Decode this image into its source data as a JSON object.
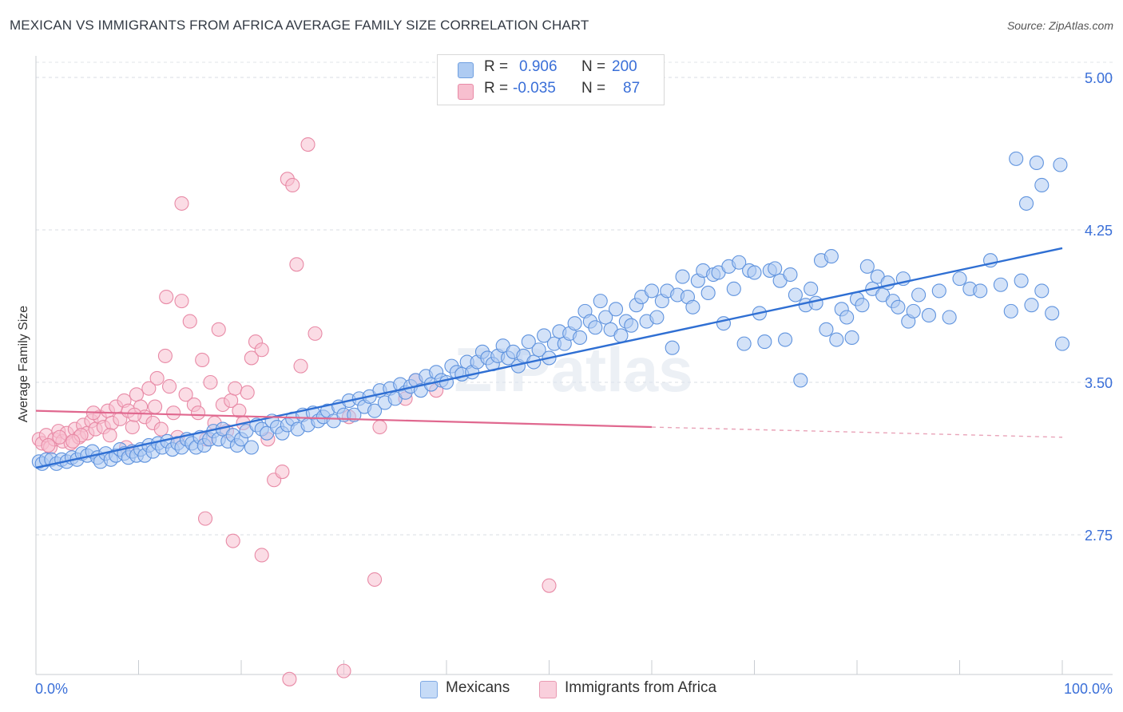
{
  "title": "MEXICAN VS IMMIGRANTS FROM AFRICA AVERAGE FAMILY SIZE CORRELATION CHART",
  "source": "Source: ZipAtlas.com",
  "watermark": "ZIPatlas",
  "legend": {
    "rows": [
      {
        "r_label": "R =",
        "r_value": "0.906",
        "n_label": "N =",
        "n_value": "200",
        "color": "#aecbf2",
        "stroke": "#6f9fe0"
      },
      {
        "r_label": "R =",
        "r_value": "-0.035",
        "n_label": "N =",
        "n_value": "87",
        "color": "#f7bfcf",
        "stroke": "#e88aa6"
      }
    ],
    "bottom": [
      {
        "label": "Mexicans",
        "color": "#c6dbf7",
        "stroke": "#7fa9e4"
      },
      {
        "label": "Immigrants from Africa",
        "color": "#f9cfdc",
        "stroke": "#e99ab2"
      }
    ]
  },
  "chart_data": {
    "type": "scatter",
    "title": "MEXICAN VS IMMIGRANTS FROM AFRICA AVERAGE FAMILY SIZE CORRELATION CHART",
    "xlabel": "",
    "ylabel": "Average Family Size",
    "x_tick_labels": [
      "0.0%",
      "100.0%"
    ],
    "y_tick_labels": [
      "2.75",
      "3.50",
      "4.25",
      "5.00"
    ],
    "xlim": [
      0,
      100
    ],
    "ylim": [
      2.0,
      5.07
    ],
    "grid": "horizontal dashed",
    "legend_position": "top-center",
    "colors": {
      "mexicans": "#3a74d4",
      "africa": "#e0688f"
    },
    "series": [
      {
        "name": "Mexicans",
        "color": "#3a74d4",
        "trend": {
          "x": [
            0,
            100
          ],
          "y": [
            3.08,
            4.16
          ],
          "style": "solid"
        },
        "points": [
          [
            0.3,
            3.11
          ],
          [
            0.6,
            3.1
          ],
          [
            1,
            3.12
          ],
          [
            1.5,
            3.12
          ],
          [
            2,
            3.1
          ],
          [
            2.5,
            3.12
          ],
          [
            3,
            3.11
          ],
          [
            3.5,
            3.13
          ],
          [
            4,
            3.12
          ],
          [
            4.5,
            3.15
          ],
          [
            5,
            3.14
          ],
          [
            5.5,
            3.16
          ],
          [
            6,
            3.13
          ],
          [
            6.3,
            3.11
          ],
          [
            6.8,
            3.15
          ],
          [
            7.3,
            3.12
          ],
          [
            7.8,
            3.14
          ],
          [
            8.2,
            3.17
          ],
          [
            8.6,
            3.15
          ],
          [
            9,
            3.13
          ],
          [
            9.4,
            3.16
          ],
          [
            9.8,
            3.14
          ],
          [
            10.2,
            3.17
          ],
          [
            10.6,
            3.14
          ],
          [
            11,
            3.19
          ],
          [
            11.4,
            3.16
          ],
          [
            11.9,
            3.2
          ],
          [
            12.3,
            3.18
          ],
          [
            12.8,
            3.21
          ],
          [
            13.3,
            3.17
          ],
          [
            13.8,
            3.2
          ],
          [
            14.2,
            3.18
          ],
          [
            14.7,
            3.22
          ],
          [
            15.2,
            3.2
          ],
          [
            15.6,
            3.18
          ],
          [
            16,
            3.23
          ],
          [
            16.4,
            3.19
          ],
          [
            16.9,
            3.22
          ],
          [
            17.3,
            3.26
          ],
          [
            17.8,
            3.22
          ],
          [
            18.2,
            3.27
          ],
          [
            18.7,
            3.21
          ],
          [
            19.2,
            3.24
          ],
          [
            19.6,
            3.19
          ],
          [
            20,
            3.22
          ],
          [
            20.5,
            3.26
          ],
          [
            21,
            3.18
          ],
          [
            21.5,
            3.29
          ],
          [
            22,
            3.27
          ],
          [
            22.5,
            3.25
          ],
          [
            23,
            3.31
          ],
          [
            23.5,
            3.28
          ],
          [
            24,
            3.25
          ],
          [
            24.5,
            3.29
          ],
          [
            25,
            3.32
          ],
          [
            25.5,
            3.27
          ],
          [
            26,
            3.34
          ],
          [
            26.5,
            3.29
          ],
          [
            27,
            3.35
          ],
          [
            27.5,
            3.31
          ],
          [
            28,
            3.33
          ],
          [
            28.4,
            3.36
          ],
          [
            29,
            3.31
          ],
          [
            29.5,
            3.38
          ],
          [
            30,
            3.34
          ],
          [
            30.5,
            3.41
          ],
          [
            31,
            3.34
          ],
          [
            31.5,
            3.42
          ],
          [
            32,
            3.38
          ],
          [
            32.5,
            3.43
          ],
          [
            33,
            3.36
          ],
          [
            33.5,
            3.46
          ],
          [
            34,
            3.4
          ],
          [
            34.5,
            3.47
          ],
          [
            35,
            3.42
          ],
          [
            35.5,
            3.49
          ],
          [
            36,
            3.45
          ],
          [
            36.5,
            3.48
          ],
          [
            37,
            3.51
          ],
          [
            37.5,
            3.46
          ],
          [
            38,
            3.53
          ],
          [
            38.5,
            3.49
          ],
          [
            39,
            3.55
          ],
          [
            39.5,
            3.51
          ],
          [
            40,
            3.5
          ],
          [
            40.5,
            3.58
          ],
          [
            41,
            3.55
          ],
          [
            41.5,
            3.54
          ],
          [
            42,
            3.6
          ],
          [
            42.5,
            3.55
          ],
          [
            43,
            3.6
          ],
          [
            43.5,
            3.65
          ],
          [
            44,
            3.62
          ],
          [
            44.5,
            3.59
          ],
          [
            45,
            3.63
          ],
          [
            45.5,
            3.68
          ],
          [
            46,
            3.62
          ],
          [
            46.5,
            3.65
          ],
          [
            47,
            3.58
          ],
          [
            47.5,
            3.63
          ],
          [
            48,
            3.7
          ],
          [
            48.5,
            3.6
          ],
          [
            49,
            3.66
          ],
          [
            49.5,
            3.73
          ],
          [
            50,
            3.62
          ],
          [
            50.5,
            3.69
          ],
          [
            51,
            3.75
          ],
          [
            51.5,
            3.69
          ],
          [
            52,
            3.74
          ],
          [
            52.5,
            3.79
          ],
          [
            53,
            3.72
          ],
          [
            53.5,
            3.85
          ],
          [
            54,
            3.8
          ],
          [
            54.5,
            3.77
          ],
          [
            55,
            3.9
          ],
          [
            55.5,
            3.82
          ],
          [
            56,
            3.76
          ],
          [
            56.5,
            3.86
          ],
          [
            57,
            3.73
          ],
          [
            57.5,
            3.8
          ],
          [
            58,
            3.78
          ],
          [
            58.5,
            3.88
          ],
          [
            59,
            3.92
          ],
          [
            59.5,
            3.8
          ],
          [
            60,
            3.95
          ],
          [
            60.5,
            3.82
          ],
          [
            61,
            3.9
          ],
          [
            61.5,
            3.95
          ],
          [
            62,
            3.67
          ],
          [
            62.5,
            3.93
          ],
          [
            63,
            4.02
          ],
          [
            63.5,
            3.92
          ],
          [
            64,
            3.87
          ],
          [
            64.5,
            4.0
          ],
          [
            65,
            4.05
          ],
          [
            65.5,
            3.94
          ],
          [
            66,
            4.03
          ],
          [
            66.5,
            4.04
          ],
          [
            67,
            3.79
          ],
          [
            67.5,
            4.07
          ],
          [
            68,
            3.96
          ],
          [
            68.5,
            4.09
          ],
          [
            69,
            3.69
          ],
          [
            69.5,
            4.05
          ],
          [
            70,
            4.04
          ],
          [
            70.5,
            3.84
          ],
          [
            71,
            3.7
          ],
          [
            71.5,
            4.05
          ],
          [
            72,
            4.06
          ],
          [
            72.5,
            4.0
          ],
          [
            73,
            3.71
          ],
          [
            73.5,
            4.03
          ],
          [
            74,
            3.93
          ],
          [
            74.5,
            3.51
          ],
          [
            75,
            3.88
          ],
          [
            75.5,
            3.96
          ],
          [
            76,
            3.89
          ],
          [
            76.5,
            4.1
          ],
          [
            77,
            3.76
          ],
          [
            77.5,
            4.12
          ],
          [
            78,
            3.71
          ],
          [
            78.5,
            3.86
          ],
          [
            79,
            3.82
          ],
          [
            79.5,
            3.72
          ],
          [
            80,
            3.91
          ],
          [
            80.5,
            3.88
          ],
          [
            81,
            4.07
          ],
          [
            81.5,
            3.96
          ],
          [
            82,
            4.02
          ],
          [
            82.5,
            3.93
          ],
          [
            83,
            3.99
          ],
          [
            83.5,
            3.9
          ],
          [
            84,
            3.87
          ],
          [
            84.5,
            4.01
          ],
          [
            85,
            3.8
          ],
          [
            85.5,
            3.85
          ],
          [
            86,
            3.93
          ],
          [
            87,
            3.83
          ],
          [
            88,
            3.95
          ],
          [
            89,
            3.82
          ],
          [
            90,
            4.01
          ],
          [
            91,
            3.96
          ],
          [
            92,
            3.95
          ],
          [
            93,
            4.1
          ],
          [
            94,
            3.98
          ],
          [
            95,
            3.85
          ],
          [
            96,
            4.0
          ],
          [
            97,
            3.88
          ],
          [
            98,
            3.95
          ],
          [
            99,
            3.84
          ],
          [
            95.5,
            4.6
          ],
          [
            97.5,
            4.58
          ],
          [
            99.8,
            4.57
          ],
          [
            98,
            4.47
          ],
          [
            96.5,
            4.38
          ],
          [
            100,
            3.69
          ]
        ]
      },
      {
        "name": "Immigrants from Africa",
        "color": "#e0688f",
        "trend": {
          "x": [
            0,
            60,
            100
          ],
          "y": [
            3.36,
            3.28,
            3.23
          ],
          "style": "solid to 60, dashed after"
        },
        "points": [
          [
            0.3,
            3.22
          ],
          [
            0.6,
            3.2
          ],
          [
            1,
            3.24
          ],
          [
            1.4,
            3.18
          ],
          [
            1.8,
            3.22
          ],
          [
            2.2,
            3.26
          ],
          [
            2.6,
            3.21
          ],
          [
            3,
            3.25
          ],
          [
            3.4,
            3.2
          ],
          [
            3.8,
            3.27
          ],
          [
            4.2,
            3.23
          ],
          [
            4.6,
            3.29
          ],
          [
            5,
            3.25
          ],
          [
            5.4,
            3.31
          ],
          [
            5.8,
            3.27
          ],
          [
            6.2,
            3.33
          ],
          [
            6.6,
            3.28
          ],
          [
            7,
            3.36
          ],
          [
            7.4,
            3.3
          ],
          [
            7.8,
            3.38
          ],
          [
            8.2,
            3.32
          ],
          [
            8.6,
            3.41
          ],
          [
            9,
            3.36
          ],
          [
            9.4,
            3.28
          ],
          [
            9.8,
            3.44
          ],
          [
            10.2,
            3.38
          ],
          [
            10.6,
            3.33
          ],
          [
            11,
            3.47
          ],
          [
            11.4,
            3.3
          ],
          [
            11.8,
            3.52
          ],
          [
            12.2,
            3.27
          ],
          [
            12.6,
            3.63
          ],
          [
            13,
            3.48
          ],
          [
            13.4,
            3.35
          ],
          [
            13.8,
            3.23
          ],
          [
            14.2,
            3.9
          ],
          [
            14.6,
            3.44
          ],
          [
            15,
            3.8
          ],
          [
            15.4,
            3.39
          ],
          [
            15.8,
            3.35
          ],
          [
            16.2,
            3.61
          ],
          [
            16.6,
            3.22
          ],
          [
            17,
            3.5
          ],
          [
            17.4,
            3.3
          ],
          [
            17.8,
            3.76
          ],
          [
            18.2,
            3.39
          ],
          [
            18.6,
            3.26
          ],
          [
            19.0,
            3.41
          ],
          [
            19.4,
            3.47
          ],
          [
            19.8,
            3.36
          ],
          [
            20.2,
            3.3
          ],
          [
            20.6,
            3.45
          ],
          [
            21,
            3.62
          ],
          [
            21.4,
            3.7
          ],
          [
            22,
            3.66
          ],
          [
            22.6,
            3.22
          ],
          [
            23.2,
            3.02
          ],
          [
            24,
            3.06
          ],
          [
            24.5,
            4.5
          ],
          [
            25,
            4.47
          ],
          [
            25.4,
            4.08
          ],
          [
            25.8,
            3.58
          ],
          [
            26.5,
            4.67
          ],
          [
            27.2,
            3.74
          ],
          [
            14.2,
            4.38
          ],
          [
            12.7,
            3.92
          ],
          [
            8.8,
            3.18
          ],
          [
            4.4,
            3.24
          ],
          [
            16.5,
            2.83
          ],
          [
            19.2,
            2.72
          ],
          [
            22,
            2.65
          ],
          [
            24.7,
            2.04
          ],
          [
            30,
            2.08
          ],
          [
            33,
            2.53
          ],
          [
            50,
            2.5
          ],
          [
            37,
            3.51
          ],
          [
            30.5,
            3.33
          ],
          [
            33.5,
            3.28
          ],
          [
            36,
            3.42
          ],
          [
            39,
            3.46
          ],
          [
            1.2,
            3.19
          ],
          [
            2.3,
            3.23
          ],
          [
            3.6,
            3.21
          ],
          [
            5.6,
            3.35
          ],
          [
            7.2,
            3.24
          ],
          [
            9.6,
            3.34
          ],
          [
            11.6,
            3.38
          ]
        ]
      }
    ]
  }
}
